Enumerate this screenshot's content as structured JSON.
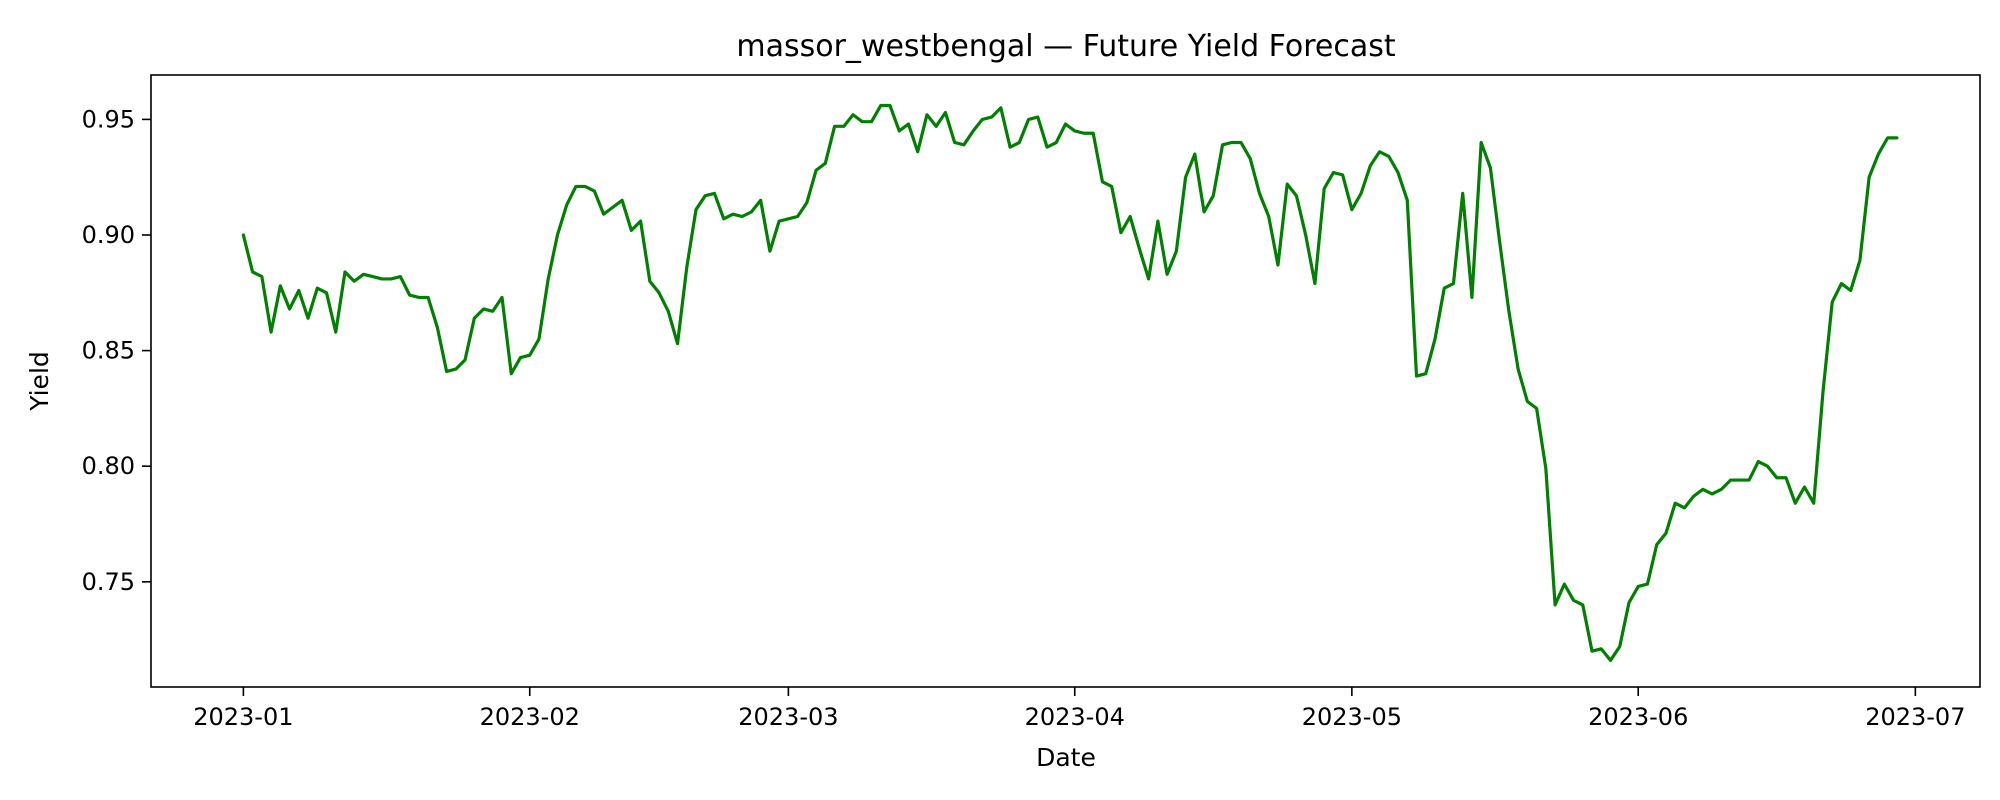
{
  "chart_data": {
    "type": "line",
    "title": "massor_westbengal — Future Yield Forecast",
    "xlabel": "Date",
    "ylabel": "Yield",
    "x_range": [
      "2022-12-22",
      "2023-07-08"
    ],
    "ylim": [
      0.7045,
      0.9692
    ],
    "x_ticks": [
      "2023-01",
      "2023-02",
      "2023-03",
      "2023-04",
      "2023-05",
      "2023-06",
      "2023-07"
    ],
    "y_ticks": [
      "0.75",
      "0.80",
      "0.85",
      "0.90",
      "0.95"
    ],
    "grid": false,
    "legend": "none",
    "series": [
      {
        "color": "#008000",
        "x_start": "2023-01-01",
        "x_step_days": 1,
        "values": [
          0.9,
          0.884,
          0.882,
          0.858,
          0.878,
          0.868,
          0.876,
          0.864,
          0.877,
          0.875,
          0.858,
          0.884,
          0.88,
          0.883,
          0.882,
          0.881,
          0.881,
          0.882,
          0.874,
          0.873,
          0.873,
          0.86,
          0.841,
          0.842,
          0.846,
          0.864,
          0.868,
          0.867,
          0.873,
          0.84,
          0.847,
          0.848,
          0.855,
          0.881,
          0.9,
          0.913,
          0.921,
          0.921,
          0.919,
          0.909,
          0.912,
          0.915,
          0.902,
          0.906,
          0.88,
          0.875,
          0.867,
          0.853,
          0.886,
          0.911,
          0.917,
          0.918,
          0.907,
          0.909,
          0.908,
          0.91,
          0.915,
          0.893,
          0.906,
          0.907,
          0.908,
          0.914,
          0.928,
          0.931,
          0.947,
          0.947,
          0.952,
          0.949,
          0.949,
          0.956,
          0.956,
          0.945,
          0.948,
          0.936,
          0.952,
          0.947,
          0.953,
          0.94,
          0.939,
          0.945,
          0.95,
          0.951,
          0.955,
          0.938,
          0.94,
          0.95,
          0.951,
          0.938,
          0.94,
          0.948,
          0.945,
          0.944,
          0.944,
          0.923,
          0.921,
          0.901,
          0.908,
          0.894,
          0.881,
          0.906,
          0.883,
          0.893,
          0.925,
          0.935,
          0.91,
          0.917,
          0.939,
          0.94,
          0.94,
          0.933,
          0.918,
          0.908,
          0.887,
          0.922,
          0.917,
          0.9,
          0.879,
          0.92,
          0.927,
          0.926,
          0.911,
          0.918,
          0.93,
          0.936,
          0.934,
          0.927,
          0.915,
          0.839,
          0.84,
          0.855,
          0.877,
          0.879,
          0.918,
          0.873,
          0.94,
          0.929,
          0.897,
          0.867,
          0.842,
          0.828,
          0.825,
          0.799,
          0.74,
          0.749,
          0.742,
          0.74,
          0.72,
          0.721,
          0.716,
          0.722,
          0.741,
          0.748,
          0.749,
          0.766,
          0.771,
          0.784,
          0.782,
          0.787,
          0.79,
          0.788,
          0.79,
          0.794,
          0.794,
          0.794,
          0.802,
          0.8,
          0.795,
          0.795,
          0.784,
          0.791,
          0.784,
          0.832,
          0.871,
          0.879,
          0.876,
          0.889,
          0.925,
          0.935,
          0.942,
          0.942
        ]
      }
    ]
  }
}
